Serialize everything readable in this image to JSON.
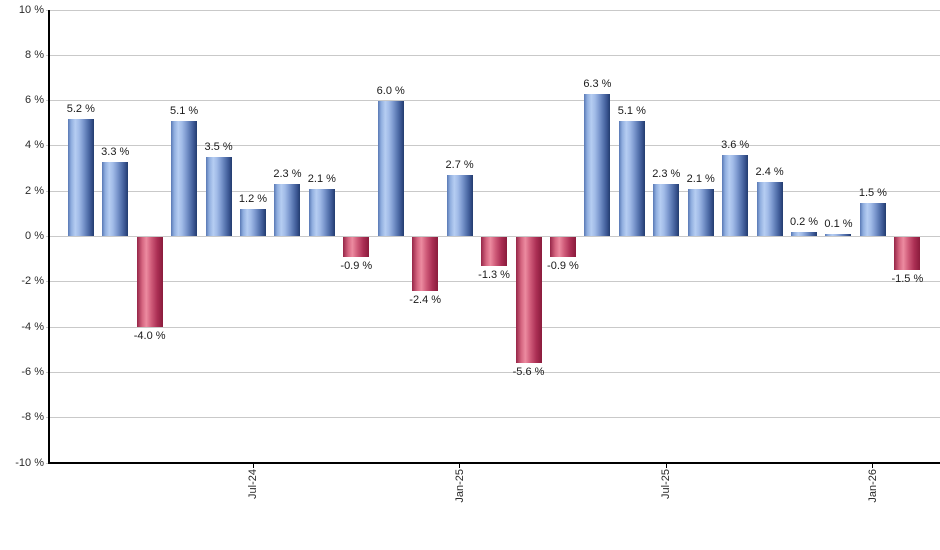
{
  "chart_data": {
    "type": "bar",
    "title": "",
    "unit": "%",
    "values": [
      5.2,
      3.3,
      -4.0,
      5.1,
      3.5,
      1.2,
      2.3,
      2.1,
      -0.9,
      6.0,
      -2.4,
      2.7,
      -1.3,
      -5.6,
      -0.9,
      6.3,
      5.1,
      2.3,
      2.1,
      3.6,
      2.4,
      0.2,
      0.1,
      1.5,
      -1.5
    ],
    "bar_labels": [
      "5.2 %",
      "3.3 %",
      "-4.0 %",
      "5.1 %",
      "3.5 %",
      "1.2 %",
      "2.3 %",
      "2.1 %",
      "-0.9 %",
      "6.0 %",
      "-2.4 %",
      "2.7 %",
      "-1.3 %",
      "-5.6 %",
      "-0.9 %",
      "6.3 %",
      "5.1 %",
      "2.3 %",
      "2.1 %",
      "3.6 %",
      "2.4 %",
      "0.2 %",
      "0.1 %",
      "1.5 %",
      "-1.5 %"
    ],
    "x_tick_labels": [
      {
        "label": "Jul-24",
        "bar_index": 5
      },
      {
        "label": "Jan-25",
        "bar_index": 11
      },
      {
        "label": "Jul-25",
        "bar_index": 17
      },
      {
        "label": "Jan-26",
        "bar_index": 23
      }
    ],
    "y_tick_labels": [
      "10 %",
      "8 %",
      "6 %",
      "4 %",
      "2 %",
      "0 %",
      "-2 %",
      "-4 %",
      "-6 %",
      "-8 %",
      "-10 %"
    ],
    "ylim": [
      -10,
      10
    ],
    "y_step": 2,
    "grid": true,
    "legend": false,
    "colors": {
      "positive_bar": "#7f9fd4",
      "positive_bar_dark": "#223c6e",
      "negative_bar": "#cc4e73",
      "negative_bar_dark": "#8a1b3c",
      "gridline": "#c9c9c9",
      "axis": "#000000",
      "label_text": "#1a1a1a"
    }
  }
}
